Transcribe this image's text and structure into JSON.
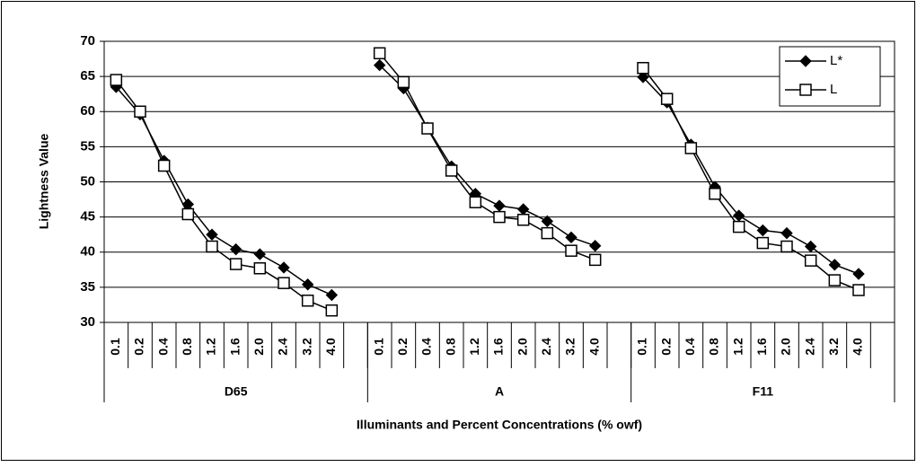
{
  "chart_data": {
    "type": "line",
    "y_label": "Lightness Value",
    "x_label": "Illuminants and Percent Concentrations (% owf)",
    "categories": [
      "0.1",
      "0.2",
      "0.4",
      "0.8",
      "1.2",
      "1.6",
      "2.0",
      "2.4",
      "3.2",
      "4.0",
      null,
      "0.1",
      "0.2",
      "0.4",
      "0.8",
      "1.2",
      "1.6",
      "2.0",
      "2.4",
      "3.2",
      "4.0",
      null,
      "0.1",
      "0.2",
      "0.4",
      "0.8",
      "1.2",
      "1.6",
      "2.0",
      "2.4",
      "3.2",
      "4.0",
      null
    ],
    "groups": [
      "D65",
      "A",
      "F11"
    ],
    "series": [
      {
        "name": "L*",
        "color": "#000000",
        "marker": "diamond",
        "values": [
          63.5,
          59.6,
          53.0,
          46.8,
          42.5,
          40.4,
          39.7,
          37.8,
          35.4,
          33.9,
          null,
          66.6,
          63.3,
          57.7,
          52.2,
          48.3,
          46.6,
          46.1,
          44.4,
          42.1,
          40.9,
          null,
          64.9,
          61.3,
          55.3,
          49.3,
          45.2,
          43.1,
          42.7,
          40.8,
          38.2,
          36.9,
          null
        ]
      },
      {
        "name": "L",
        "color": "#000000",
        "marker": "square",
        "values": [
          64.5,
          60.0,
          52.3,
          45.4,
          40.8,
          38.3,
          37.7,
          35.6,
          33.1,
          31.7,
          null,
          68.3,
          64.2,
          57.6,
          51.6,
          47.1,
          45.0,
          44.6,
          42.7,
          40.2,
          38.9,
          null,
          66.2,
          61.8,
          54.8,
          48.3,
          43.6,
          41.3,
          40.8,
          38.8,
          36.0,
          34.6,
          null
        ]
      }
    ],
    "ylim": [
      30,
      70
    ],
    "yticks": [
      30,
      35,
      40,
      45,
      50,
      55,
      60,
      65,
      70
    ],
    "grid": true,
    "legend": "top-right"
  }
}
